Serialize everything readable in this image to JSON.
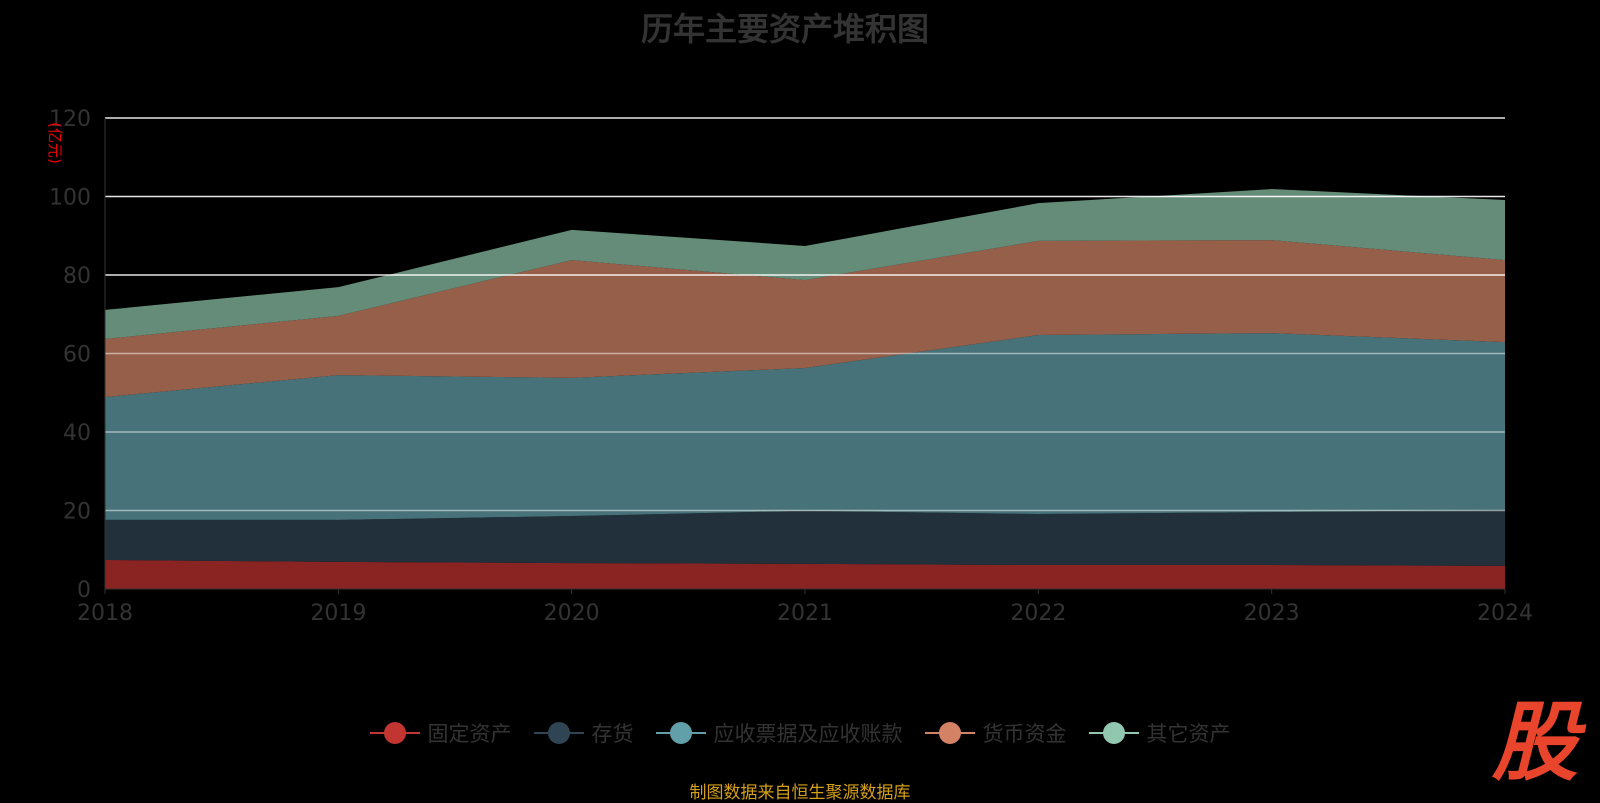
{
  "title": "历年主要资产堆积图",
  "source": "制图数据来自恒生聚源数据库",
  "logo": "股",
  "chart_data": {
    "type": "area",
    "stacked": true,
    "title": "历年主要资产堆积图",
    "ylabel": "(亿元)",
    "ylim": [
      0,
      120
    ],
    "yticks": [
      0,
      20,
      40,
      60,
      80,
      100,
      120
    ],
    "x": [
      "2018",
      "2019",
      "2020",
      "2021",
      "2022",
      "2023",
      "2024"
    ],
    "legend_position": "bottom",
    "series": [
      {
        "name": "固定资产",
        "color": "#c23531",
        "fill": "#8a2422",
        "values": [
          7.4,
          6.9,
          6.6,
          6.4,
          6.1,
          6.1,
          5.9
        ]
      },
      {
        "name": "存货",
        "color": "#2f4554",
        "fill": "#21303b",
        "values": [
          10.2,
          10.7,
          12.0,
          13.5,
          13.0,
          13.5,
          14.2
        ]
      },
      {
        "name": "应收票据及应收账款",
        "color": "#61a0a8",
        "fill": "#477279",
        "values": [
          31.3,
          36.9,
          35.2,
          36.4,
          45.6,
          45.6,
          42.8
        ]
      },
      {
        "name": "货币资金",
        "color": "#d48265",
        "fill": "#955f4a",
        "values": [
          14.8,
          15.1,
          30.0,
          22.4,
          24.0,
          23.7,
          20.9
        ]
      },
      {
        "name": "其它资产",
        "color": "#91c7ae",
        "fill": "#648c79",
        "values": [
          7.4,
          7.3,
          7.7,
          8.7,
          9.6,
          13.0,
          15.3
        ]
      }
    ]
  }
}
